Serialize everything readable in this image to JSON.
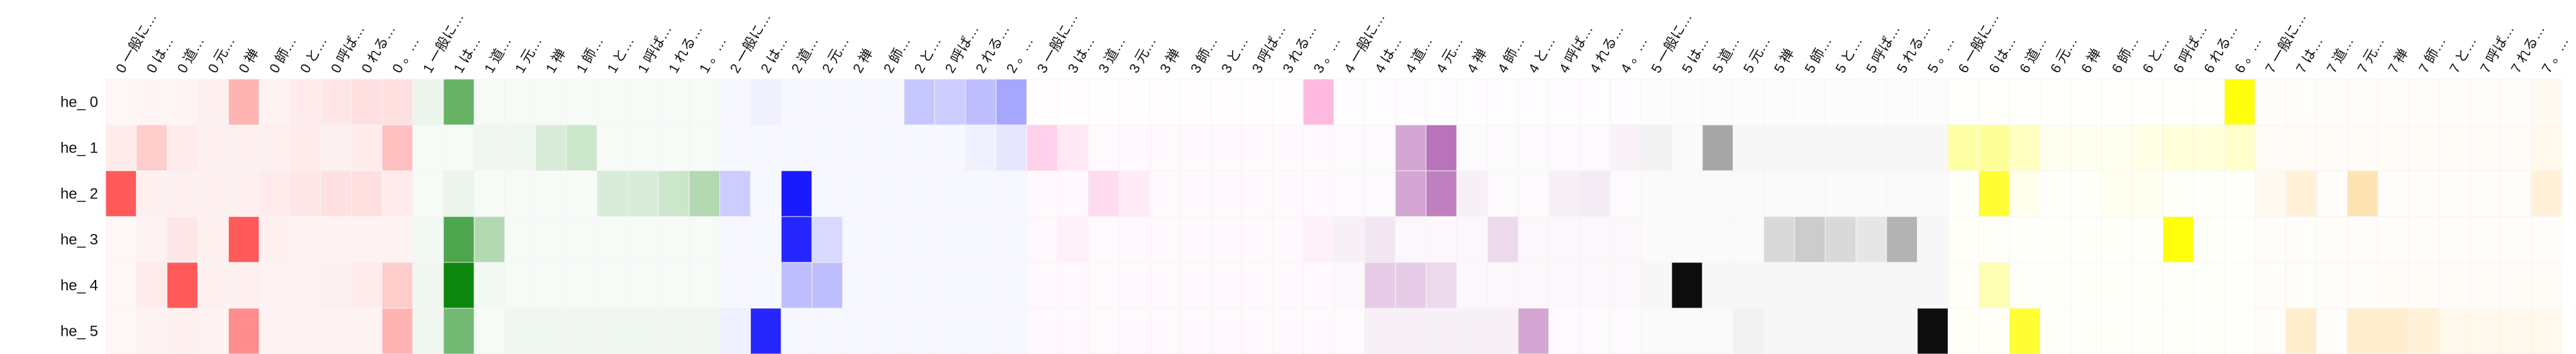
{
  "chart_data": {
    "type": "heatmap",
    "title": "",
    "xlabel": "",
    "ylabel": "",
    "rows": [
      "he_ 0",
      "he_ 1",
      "he_ 2",
      "he_ 3",
      "he_ 4",
      "he_ 5"
    ],
    "columns": [
      "0 一般に…",
      "0 は…",
      "0 道…",
      "0 元…",
      "0 禅",
      "0 師…",
      "0 と…",
      "0 呼ば…",
      "0 れる…",
      "0 。…",
      "1 一般に…",
      "1 は…",
      "1 道…",
      "1 元…",
      "1 禅",
      "1 師…",
      "1 と…",
      "1 呼ば…",
      "1 れる…",
      "1 。…",
      "2 一般に…",
      "2 は…",
      "2 道…",
      "2 元…",
      "2 禅",
      "2 師…",
      "2 と…",
      "2 呼ば…",
      "2 れる…",
      "2 。…",
      "3 一般に…",
      "3 は…",
      "3 道…",
      "3 元…",
      "3 禅",
      "3 師…",
      "3 と…",
      "3 呼ば…",
      "3 れる…",
      "3 。…",
      "4 一般に…",
      "4 は…",
      "4 道…",
      "4 元…",
      "4 禅",
      "4 師…",
      "4 と…",
      "4 呼ば…",
      "4 れる…",
      "4 。…",
      "5 一般に…",
      "5 は…",
      "5 道…",
      "5 元…",
      "5 禅",
      "5 師…",
      "5 と…",
      "5 呼ば…",
      "5 れる…",
      "5 。…",
      "6 一般に…",
      "6 は…",
      "6 道…",
      "6 元…",
      "6 禅",
      "6 師…",
      "6 と…",
      "6 呼ば…",
      "6 れる…",
      "6 。…",
      "7 一般に…",
      "7 は…",
      "7 道…",
      "7 元…",
      "7 禅",
      "7 師…",
      "7 と…",
      "7 呼ば…",
      "7 れる…",
      "7 。…"
    ],
    "group_colors": [
      "#ff0000",
      "#008000",
      "#0000ff",
      "#ff1493",
      "#800080",
      "#000000",
      "#ffff00",
      "#ffa500"
    ],
    "values": [
      [
        0.03,
        0.04,
        0.04,
        0.06,
        0.3,
        0.05,
        0.08,
        0.1,
        0.12,
        0.12,
        0.08,
        0.6,
        0.03,
        0.03,
        0.03,
        0.03,
        0.03,
        0.03,
        0.03,
        0.03,
        0.03,
        0.06,
        0.03,
        0.03,
        0.03,
        0.03,
        0.22,
        0.2,
        0.25,
        0.35,
        0.01,
        0.01,
        0.01,
        0.01,
        0.01,
        0.01,
        0.01,
        0.01,
        0.01,
        0.3,
        0.01,
        0.01,
        0.01,
        0.01,
        0.01,
        0.01,
        0.01,
        0.01,
        0.01,
        0.01,
        0.01,
        0.01,
        0.01,
        0.01,
        0.01,
        0.01,
        0.01,
        0.01,
        0.01,
        0.01,
        0.01,
        0.01,
        0.01,
        0.01,
        0.01,
        0.01,
        0.01,
        0.01,
        0.01,
        0.95,
        0.01,
        0.02,
        0.02,
        0.02,
        0.02,
        0.02,
        0.02,
        0.02,
        0.02,
        0.06
      ],
      [
        0.08,
        0.2,
        0.08,
        0.06,
        0.06,
        0.06,
        0.08,
        0.06,
        0.08,
        0.25,
        0.03,
        0.03,
        0.06,
        0.06,
        0.15,
        0.2,
        0.03,
        0.03,
        0.03,
        0.03,
        0.03,
        0.03,
        0.03,
        0.03,
        0.03,
        0.03,
        0.03,
        0.03,
        0.06,
        0.1,
        0.2,
        0.1,
        0.03,
        0.03,
        0.03,
        0.03,
        0.03,
        0.03,
        0.03,
        0.03,
        0.02,
        0.02,
        0.35,
        0.55,
        0.02,
        0.02,
        0.02,
        0.02,
        0.02,
        0.05,
        0.05,
        0.02,
        0.35,
        0.03,
        0.03,
        0.03,
        0.03,
        0.03,
        0.03,
        0.03,
        0.35,
        0.4,
        0.25,
        0.06,
        0.06,
        0.06,
        0.1,
        0.15,
        0.15,
        0.2,
        0.03,
        0.03,
        0.03,
        0.03,
        0.03,
        0.03,
        0.03,
        0.03,
        0.03,
        0.08
      ],
      [
        0.65,
        0.06,
        0.06,
        0.06,
        0.06,
        0.08,
        0.1,
        0.12,
        0.12,
        0.08,
        0.03,
        0.08,
        0.03,
        0.03,
        0.03,
        0.03,
        0.15,
        0.15,
        0.2,
        0.3,
        0.2,
        0.03,
        0.9,
        0.03,
        0.03,
        0.03,
        0.03,
        0.03,
        0.03,
        0.03,
        0.03,
        0.03,
        0.15,
        0.08,
        0.03,
        0.03,
        0.03,
        0.03,
        0.03,
        0.03,
        0.02,
        0.02,
        0.35,
        0.5,
        0.06,
        0.02,
        0.02,
        0.06,
        0.08,
        0.02,
        0.02,
        0.02,
        0.02,
        0.02,
        0.02,
        0.02,
        0.02,
        0.02,
        0.02,
        0.02,
        0.02,
        0.8,
        0.08,
        0.02,
        0.02,
        0.06,
        0.06,
        0.02,
        0.02,
        0.02,
        0.06,
        0.15,
        0.02,
        0.3,
        0.02,
        0.02,
        0.02,
        0.02,
        0.02,
        0.15
      ],
      [
        0.03,
        0.05,
        0.1,
        0.06,
        0.65,
        0.06,
        0.05,
        0.05,
        0.05,
        0.05,
        0.05,
        0.7,
        0.3,
        0.03,
        0.03,
        0.03,
        0.03,
        0.03,
        0.03,
        0.03,
        0.03,
        0.03,
        0.85,
        0.15,
        0.03,
        0.03,
        0.03,
        0.03,
        0.03,
        0.03,
        0.03,
        0.06,
        0.03,
        0.03,
        0.03,
        0.03,
        0.03,
        0.03,
        0.03,
        0.06,
        0.06,
        0.1,
        0.03,
        0.03,
        0.03,
        0.15,
        0.03,
        0.03,
        0.03,
        0.03,
        0.02,
        0.02,
        0.02,
        0.02,
        0.15,
        0.2,
        0.15,
        0.1,
        0.3,
        0.03,
        0.03,
        0.02,
        0.02,
        0.02,
        0.02,
        0.02,
        0.02,
        0.95,
        0.02,
        0.02,
        0.02,
        0.02,
        0.02,
        0.02,
        0.02,
        0.02,
        0.02,
        0.02,
        0.02,
        0.02
      ],
      [
        0.03,
        0.08,
        0.65,
        0.06,
        0.06,
        0.05,
        0.05,
        0.06,
        0.08,
        0.2,
        0.06,
        0.95,
        0.05,
        0.03,
        0.03,
        0.03,
        0.03,
        0.03,
        0.03,
        0.03,
        0.03,
        0.03,
        0.25,
        0.25,
        0.03,
        0.03,
        0.03,
        0.03,
        0.03,
        0.03,
        0.03,
        0.03,
        0.03,
        0.03,
        0.03,
        0.03,
        0.03,
        0.03,
        0.03,
        0.03,
        0.03,
        0.2,
        0.2,
        0.15,
        0.03,
        0.03,
        0.03,
        0.03,
        0.03,
        0.03,
        0.03,
        0.95,
        0.03,
        0.03,
        0.03,
        0.03,
        0.03,
        0.03,
        0.03,
        0.03,
        0.03,
        0.3,
        0.02,
        0.02,
        0.02,
        0.02,
        0.02,
        0.02,
        0.02,
        0.02,
        0.02,
        0.02,
        0.02,
        0.02,
        0.03,
        0.03,
        0.03,
        0.03,
        0.03,
        0.03
      ],
      [
        0.03,
        0.05,
        0.06,
        0.05,
        0.45,
        0.05,
        0.05,
        0.05,
        0.05,
        0.3,
        0.06,
        0.55,
        0.03,
        0.06,
        0.06,
        0.06,
        0.06,
        0.06,
        0.06,
        0.06,
        0.06,
        0.85,
        0.03,
        0.03,
        0.03,
        0.03,
        0.03,
        0.03,
        0.03,
        0.03,
        0.03,
        0.03,
        0.03,
        0.03,
        0.03,
        0.03,
        0.03,
        0.03,
        0.03,
        0.03,
        0.02,
        0.06,
        0.06,
        0.06,
        0.06,
        0.06,
        0.35,
        0.02,
        0.02,
        0.02,
        0.02,
        0.02,
        0.02,
        0.05,
        0.03,
        0.03,
        0.03,
        0.03,
        0.03,
        0.95,
        0.03,
        0.03,
        0.8,
        0.02,
        0.02,
        0.02,
        0.02,
        0.02,
        0.02,
        0.02,
        0.02,
        0.2,
        0.02,
        0.2,
        0.2,
        0.15,
        0.08,
        0.08,
        0.08,
        0.08
      ]
    ]
  }
}
